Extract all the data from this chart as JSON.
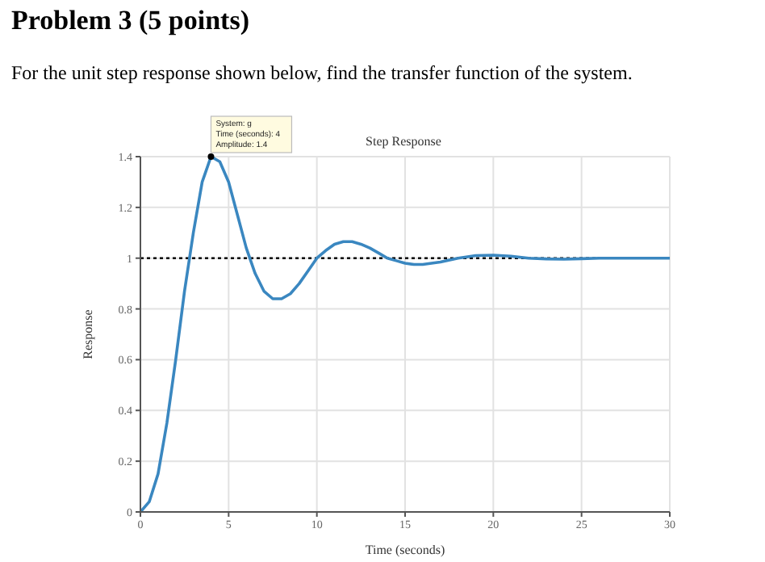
{
  "chart_data": {
    "type": "line",
    "title": "Step Response",
    "xlabel": "Time (seconds)",
    "ylabel": "Response",
    "annotations": [
      "Problem 3 (5 points)",
      "For the unit step response shown below, find the transfer function of the system.",
      {
        "text": "System: g\nTime (seconds): 4\nAmplitude: 1.4",
        "x": 4,
        "y": 1.4
      }
    ],
    "x": [
      0,
      0.5,
      1,
      1.5,
      2,
      2.5,
      3,
      3.5,
      4,
      4.5,
      5,
      5.5,
      6,
      6.5,
      7,
      7.5,
      8,
      8.5,
      9,
      9.5,
      10,
      10.5,
      11,
      11.5,
      12,
      12.5,
      13,
      13.5,
      14,
      14.5,
      15,
      15.5,
      16,
      17,
      18,
      19,
      20,
      21,
      22,
      23,
      24,
      25,
      26,
      28,
      30
    ],
    "series": [
      {
        "color": "#3a87c0",
        "values": [
          0,
          0.04,
          0.15,
          0.35,
          0.6,
          0.87,
          1.1,
          1.3,
          1.4,
          1.38,
          1.3,
          1.17,
          1.04,
          0.94,
          0.87,
          0.84,
          0.84,
          0.86,
          0.9,
          0.95,
          1.0,
          1.03,
          1.055,
          1.065,
          1.065,
          1.055,
          1.04,
          1.02,
          1.0,
          0.99,
          0.98,
          0.975,
          0.975,
          0.985,
          1.0,
          1.01,
          1.012,
          1.008,
          1.0,
          0.997,
          0.996,
          0.998,
          1.0,
          1.0,
          1.0
        ]
      }
    ],
    "xlim": [
      0,
      30
    ],
    "xticks": [
      0,
      5,
      10,
      15,
      20,
      25,
      30
    ],
    "ylim": [
      0,
      1.4
    ],
    "yticks": [
      0,
      0.2,
      0.4,
      0.6,
      0.8,
      1,
      1.2,
      1.4
    ],
    "ref_lines": [
      {
        "axis": "y",
        "value": 1,
        "color": "#000000",
        "line_style": "dotted"
      }
    ],
    "grid": true,
    "legend": false,
    "marker": "none",
    "line_style": "solid"
  }
}
